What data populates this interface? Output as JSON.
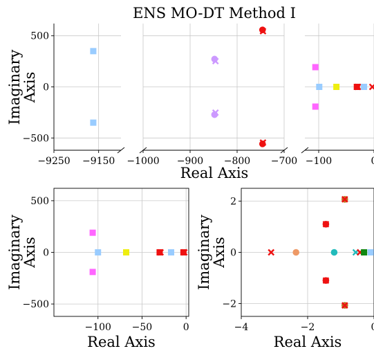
{
  "figure": {
    "title": "ENS MO-DT Method I"
  },
  "chart_data": [
    {
      "type": "scatter",
      "panel": "top-broken-axis",
      "xlabel": "Real Axis",
      "ylabel": "Imaginary Axis",
      "ylim": [
        -620,
        620
      ],
      "yticks": [
        500,
        0,
        -500
      ],
      "ytick_labels": [
        "500",
        "0",
        "−500"
      ],
      "segments": [
        {
          "xlim": [
            -9250,
            -9100
          ],
          "xticks": [
            -9250,
            -9150
          ],
          "xtick_labels": [
            "−9250",
            "−9150"
          ]
        },
        {
          "xlim": [
            -1000,
            -700
          ],
          "xticks": [
            -1000,
            -900,
            -800,
            -700
          ],
          "xtick_labels": [
            "−1000",
            "−900",
            "−800",
            "−700"
          ]
        },
        {
          "xlim": [
            -125,
            0
          ],
          "xticks": [
            -100,
            0
          ],
          "xtick_labels": [
            "−100",
            "0"
          ]
        }
      ],
      "points": [
        {
          "x": -9162,
          "y": 350,
          "marker": "square",
          "color": "#99ccff"
        },
        {
          "x": -9162,
          "y": -350,
          "marker": "square",
          "color": "#99ccff"
        },
        {
          "x": -848,
          "y": 272,
          "marker": "circle",
          "color": "#cc99ff"
        },
        {
          "x": -846,
          "y": 252,
          "marker": "x",
          "color": "#cc99ff"
        },
        {
          "x": -848,
          "y": -272,
          "marker": "circle",
          "color": "#cc99ff"
        },
        {
          "x": -846,
          "y": -252,
          "marker": "x",
          "color": "#cc99ff"
        },
        {
          "x": -746,
          "y": 558,
          "marker": "circle",
          "color": "#ee1111"
        },
        {
          "x": -745,
          "y": 545,
          "marker": "x",
          "color": "#ee1111"
        },
        {
          "x": -746,
          "y": -558,
          "marker": "circle",
          "color": "#ee1111"
        },
        {
          "x": -745,
          "y": -545,
          "marker": "x",
          "color": "#ee1111"
        },
        {
          "x": -106,
          "y": 193,
          "marker": "square",
          "color": "#ff66ff"
        },
        {
          "x": -106,
          "y": -193,
          "marker": "square",
          "color": "#ff66ff"
        },
        {
          "x": -99,
          "y": 0,
          "marker": "square",
          "color": "#99ccff"
        },
        {
          "x": -68,
          "y": 0,
          "marker": "square",
          "color": "#eeee11"
        },
        {
          "x": -31,
          "y": 0,
          "marker": "square",
          "color": "#ee1111"
        },
        {
          "x": -29,
          "y": 0,
          "marker": "x",
          "color": "#ee1111"
        },
        {
          "x": -18,
          "y": 0,
          "marker": "square",
          "color": "#99ccff"
        },
        {
          "x": -3,
          "y": 0,
          "marker": "x",
          "color": "#ee1111"
        }
      ]
    },
    {
      "type": "scatter",
      "panel": "bottom-left",
      "xlabel": "Real Axis",
      "ylabel": "Imaginary Axis",
      "xlim": [
        -150,
        3
      ],
      "ylim": [
        -620,
        620
      ],
      "xticks": [
        -100,
        -50,
        0
      ],
      "xtick_labels": [
        "−100",
        "−50",
        "0"
      ],
      "yticks": [
        500,
        0,
        -500
      ],
      "ytick_labels": [
        "500",
        "0",
        "−500"
      ],
      "points": [
        {
          "x": -106,
          "y": 190,
          "marker": "square",
          "color": "#ff66ff"
        },
        {
          "x": -106,
          "y": -190,
          "marker": "square",
          "color": "#ff66ff"
        },
        {
          "x": -100,
          "y": 0,
          "marker": "square",
          "color": "#99ccff"
        },
        {
          "x": -68,
          "y": 0,
          "marker": "square",
          "color": "#eeee11"
        },
        {
          "x": -30,
          "y": 0,
          "marker": "square",
          "color": "#ee1111"
        },
        {
          "x": -29,
          "y": 0,
          "marker": "x",
          "color": "#ee1111"
        },
        {
          "x": -17,
          "y": 0,
          "marker": "square",
          "color": "#99ccff"
        },
        {
          "x": -3,
          "y": 0,
          "marker": "square",
          "color": "#ee1111"
        },
        {
          "x": -2,
          "y": 0,
          "marker": "x",
          "color": "#ee1111"
        }
      ]
    },
    {
      "type": "scatter",
      "panel": "bottom-right",
      "xlabel": "Real Axis",
      "ylabel": "Imaginary Axis",
      "xlim": [
        -4,
        0
      ],
      "ylim": [
        -2.5,
        2.5
      ],
      "xticks": [
        -4,
        -2,
        0
      ],
      "xtick_labels": [
        "−4",
        "−2",
        "0"
      ],
      "yticks": [
        2,
        0,
        -2
      ],
      "ytick_labels": [
        "2",
        "0",
        "−2"
      ],
      "points": [
        {
          "x": -3.1,
          "y": 0,
          "marker": "x",
          "color": "#ee1111"
        },
        {
          "x": -2.35,
          "y": 0,
          "marker": "circle",
          "color": "#ee9966"
        },
        {
          "x": -1.45,
          "y": 1.1,
          "marker": "circle",
          "color": "#ee1111"
        },
        {
          "x": -1.45,
          "y": -1.1,
          "marker": "circle",
          "color": "#ee1111"
        },
        {
          "x": -1.45,
          "y": 1.1,
          "marker": "x",
          "color": "#ee1111"
        },
        {
          "x": -1.45,
          "y": -1.1,
          "marker": "x",
          "color": "#ee1111"
        },
        {
          "x": -1.2,
          "y": 0,
          "marker": "circle",
          "color": "#22bbbb"
        },
        {
          "x": -0.88,
          "y": 2.07,
          "marker": "circle",
          "color": "#bb7722"
        },
        {
          "x": -0.88,
          "y": 2.07,
          "marker": "x",
          "color": "#ee1111"
        },
        {
          "x": -0.88,
          "y": -2.07,
          "marker": "circle",
          "color": "#bb7722"
        },
        {
          "x": -0.88,
          "y": -2.07,
          "marker": "x",
          "color": "#ee1111"
        },
        {
          "x": -0.55,
          "y": 0,
          "marker": "x",
          "color": "#22bbbb"
        },
        {
          "x": -0.42,
          "y": 0,
          "marker": "x",
          "color": "#ee1111"
        },
        {
          "x": -0.3,
          "y": 0,
          "marker": "square",
          "color": "#118811"
        },
        {
          "x": -0.1,
          "y": 0,
          "marker": "square",
          "color": "#99ccff"
        }
      ]
    }
  ]
}
